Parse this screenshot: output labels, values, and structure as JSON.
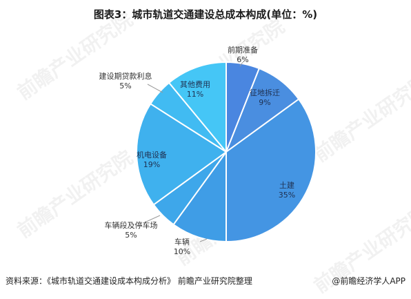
{
  "title": "图表3：城市轨道交通建设总成本构成(单位：%)",
  "source": "资料来源：《城市轨道交通建设成本构成分析》 前瞻产业研究院整理",
  "brand": "@前瞻经济学人APP",
  "watermark": "前瞻产业研究院",
  "chart_data": {
    "type": "pie",
    "title": "图表3：城市轨道交通建设总成本构成(单位：%)",
    "unit": "%",
    "slices": [
      {
        "label": "前期准备",
        "value": 6,
        "color": "#4a86e0"
      },
      {
        "label": "征地拆迁",
        "value": 9,
        "color": "#4a8ee0"
      },
      {
        "label": "土建",
        "value": 35,
        "color": "#4495e3"
      },
      {
        "label": "车辆",
        "value": 10,
        "color": "#3f9de6"
      },
      {
        "label": "车辆段及停车场",
        "value": 5,
        "color": "#3ea7ea"
      },
      {
        "label": "机电设备",
        "value": 19,
        "color": "#3fb1ee"
      },
      {
        "label": "建设期贷款利息",
        "value": 5,
        "color": "#41bbf2"
      },
      {
        "label": "其他费用",
        "value": 11,
        "color": "#45c6f6"
      }
    ]
  }
}
